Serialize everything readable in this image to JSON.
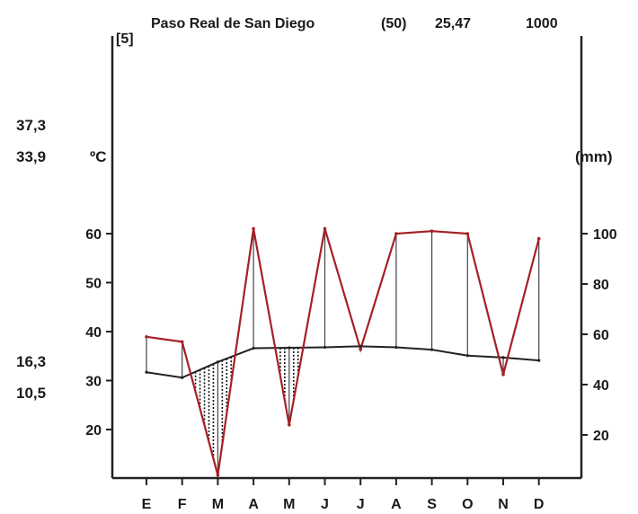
{
  "header": {
    "station": "Paso Real de San Diego",
    "years": "(50)",
    "mean_temp": "25,47",
    "annual_precip": "1000",
    "years_note": "[5]"
  },
  "side_values": {
    "abs_max": "37,3",
    "mean_max": "33,9",
    "mean_min": "16,3",
    "abs_min": "10,5"
  },
  "chart_data": {
    "type": "line",
    "title": "Paso Real de San Diego",
    "xlabel": "",
    "ylabel_left": "ºC",
    "ylabel_right": "(mm)",
    "categories": [
      "E",
      "F",
      "M",
      "A",
      "M",
      "J",
      "J",
      "A",
      "S",
      "O",
      "N",
      "D"
    ],
    "left_axis": {
      "ticks": [
        20,
        30,
        40,
        50,
        60
      ],
      "ylim": [
        5,
        100
      ]
    },
    "right_axis": {
      "ticks": [
        20,
        40,
        60,
        80,
        100
      ],
      "ylim": [
        0,
        100
      ]
    },
    "series": [
      {
        "values": [
          31.7,
          30.6,
          33.8,
          36.6,
          36.7,
          36.8,
          37.0,
          36.8,
          36.3,
          35.1,
          34.7,
          34.1
        ],
        "color": "#222222",
        "axis": "left"
      },
      {
        "values": [
          59,
          57,
          4,
          102,
          24,
          102,
          54,
          100,
          101,
          100,
          44,
          98
        ],
        "color": "#a52024",
        "axis": "right"
      }
    ],
    "grid": false
  }
}
